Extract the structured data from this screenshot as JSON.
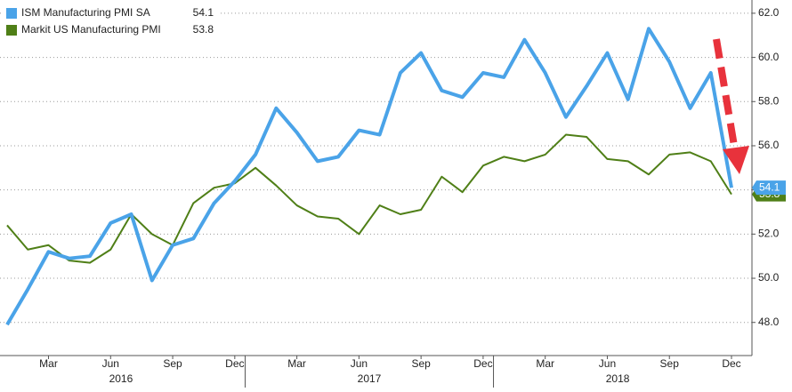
{
  "chart_data": {
    "type": "line",
    "categories": [
      null,
      null,
      "Mar",
      null,
      null,
      "Jun",
      null,
      null,
      "Sep",
      null,
      null,
      "Dec",
      null,
      null,
      "Mar",
      null,
      null,
      "Jun",
      null,
      null,
      "Sep",
      null,
      null,
      "Dec",
      null,
      null,
      "Mar",
      null,
      null,
      "Jun",
      null,
      null,
      "Sep",
      null,
      null,
      "Dec"
    ],
    "years": [
      "2016",
      "2017",
      "2018"
    ],
    "series": [
      {
        "name": "ISM Manufacturing PMI SA",
        "color": "#4aa3e8",
        "values": [
          47.9,
          49.5,
          51.2,
          50.9,
          51.0,
          52.5,
          52.9,
          49.9,
          51.5,
          51.8,
          53.4,
          54.4,
          55.6,
          57.7,
          56.6,
          55.3,
          55.5,
          56.7,
          56.5,
          59.3,
          60.2,
          58.5,
          58.2,
          59.3,
          59.1,
          60.8,
          59.3,
          57.3,
          58.7,
          60.2,
          58.1,
          61.3,
          59.8,
          57.7,
          59.3,
          54.1
        ]
      },
      {
        "name": "Markit US Manufacturing PMI",
        "color": "#4f7f17",
        "values": [
          52.4,
          51.3,
          51.5,
          50.8,
          50.7,
          51.3,
          52.9,
          52.0,
          51.5,
          53.4,
          54.1,
          54.3,
          55.0,
          54.2,
          53.3,
          52.8,
          52.7,
          52.0,
          53.3,
          52.9,
          53.1,
          54.6,
          53.9,
          55.1,
          55.5,
          55.3,
          55.6,
          56.5,
          56.4,
          55.4,
          55.3,
          54.7,
          55.6,
          55.7,
          55.3,
          53.8
        ]
      }
    ],
    "ylim": [
      46.5,
      62.6
    ],
    "yticks": [
      {
        "value": 48,
        "label": "48.0"
      },
      {
        "value": 50,
        "label": "50.0"
      },
      {
        "value": 52,
        "label": "52.0"
      },
      {
        "value": 54,
        "label": "54.0"
      },
      {
        "value": 56,
        "label": "56.0"
      },
      {
        "value": 58,
        "label": "58.0"
      },
      {
        "value": 60,
        "label": "60.0"
      },
      {
        "value": 62,
        "label": "62.0"
      }
    ],
    "grid": true
  }
}
